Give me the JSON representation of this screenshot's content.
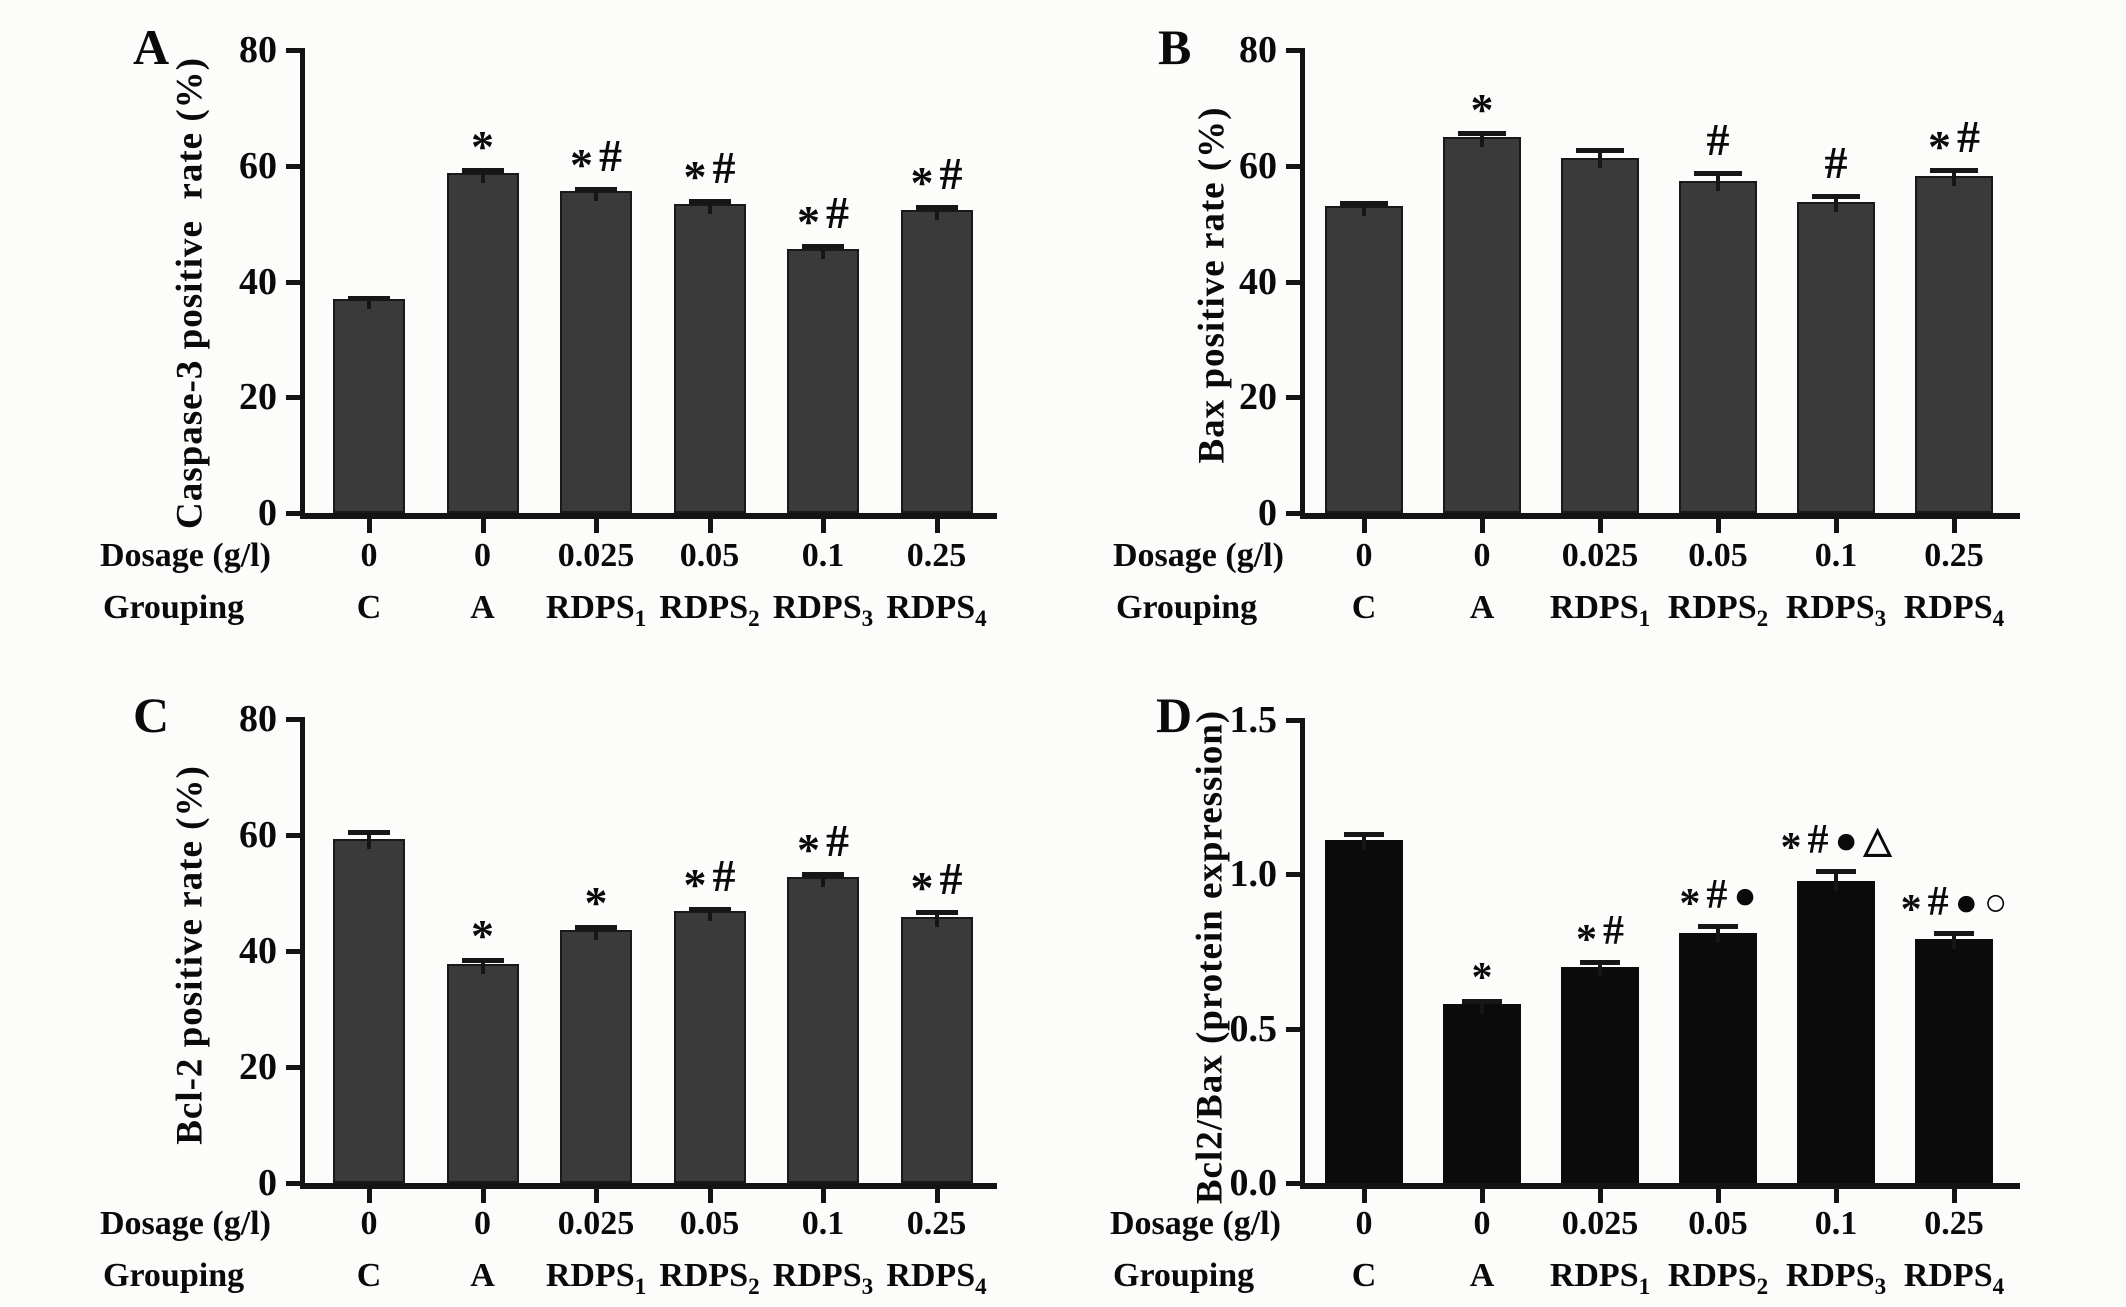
{
  "chart_data": [
    {
      "type": "bar",
      "panel_label": "A",
      "ylabel": "Caspase-3 positive  rate (%)",
      "ylim": [
        0,
        80
      ],
      "yticks": [
        0,
        20,
        40,
        60,
        80
      ],
      "ytick_labels": [
        "0",
        "20",
        "40",
        "60",
        "80"
      ],
      "bar_color": "#3a3a3a",
      "error_color": "#161616",
      "x_rows": {
        "dosage_label": "Dosage (g/l)",
        "grouping_label": "Grouping"
      },
      "dosages": [
        "0",
        "0",
        "0.025",
        "0.05",
        "0.1",
        "0.25"
      ],
      "groups": [
        {
          "base": "C",
          "sub": ""
        },
        {
          "base": "A",
          "sub": ""
        },
        {
          "base": "RDPS",
          "sub": "1"
        },
        {
          "base": "RDPS",
          "sub": "2"
        },
        {
          "base": "RDPS",
          "sub": "3"
        },
        {
          "base": "RDPS",
          "sub": "4"
        }
      ],
      "values": [
        36.9,
        58.8,
        55.7,
        53.4,
        45.6,
        52.3
      ],
      "errors": [
        0.3,
        0.4,
        0.3,
        0.5,
        0.5,
        0.6
      ],
      "annotations": [
        "",
        "*",
        "*#",
        "*#",
        "*#",
        "*#"
      ],
      "legend": "none",
      "grid": "off"
    },
    {
      "type": "bar",
      "panel_label": "B",
      "ylabel": "Bax positive rate (%)",
      "ylim": [
        0,
        80
      ],
      "yticks": [
        0,
        20,
        40,
        60,
        80
      ],
      "ytick_labels": [
        "0",
        "20",
        "40",
        "60",
        "80"
      ],
      "bar_color": "#3a3a3a",
      "error_color": "#161616",
      "x_rows": {
        "dosage_label": "Dosage (g/l)",
        "grouping_label": "Grouping"
      },
      "dosages": [
        "0",
        "0",
        "0.025",
        "0.05",
        "0.1",
        "0.25"
      ],
      "groups": [
        {
          "base": "C",
          "sub": ""
        },
        {
          "base": "A",
          "sub": ""
        },
        {
          "base": "RDPS",
          "sub": "1"
        },
        {
          "base": "RDPS",
          "sub": "2"
        },
        {
          "base": "RDPS",
          "sub": "3"
        },
        {
          "base": "RDPS",
          "sub": "4"
        }
      ],
      "values": [
        53.0,
        65.0,
        61.4,
        57.3,
        53.8,
        58.3
      ],
      "errors": [
        0.6,
        0.6,
        1.3,
        1.4,
        1.0,
        0.9
      ],
      "annotations": [
        "",
        "*",
        "",
        "#",
        "#",
        "*#"
      ],
      "legend": "none",
      "grid": "off"
    },
    {
      "type": "bar",
      "panel_label": "C",
      "ylabel": "Bcl-2 positive rate (%)",
      "ylim": [
        0,
        80
      ],
      "yticks": [
        0,
        20,
        40,
        60,
        80
      ],
      "ytick_labels": [
        "0",
        "20",
        "40",
        "60",
        "80"
      ],
      "bar_color": "#3a3a3a",
      "error_color": "#161616",
      "x_rows": {
        "dosage_label": "Dosage (g/l)",
        "grouping_label": "Grouping"
      },
      "dosages": [
        "0",
        "0",
        "0.025",
        "0.05",
        "0.1",
        "0.25"
      ],
      "groups": [
        {
          "base": "C",
          "sub": ""
        },
        {
          "base": "A",
          "sub": ""
        },
        {
          "base": "RDPS",
          "sub": "1"
        },
        {
          "base": "RDPS",
          "sub": "2"
        },
        {
          "base": "RDPS",
          "sub": "3"
        },
        {
          "base": "RDPS",
          "sub": "4"
        }
      ],
      "values": [
        59.3,
        37.8,
        43.6,
        46.9,
        52.8,
        45.9
      ],
      "errors": [
        1.3,
        0.6,
        0.6,
        0.4,
        0.5,
        0.9
      ],
      "annotations": [
        "",
        "*",
        "*",
        "*#",
        "*#",
        "*#"
      ],
      "legend": "none",
      "grid": "off"
    },
    {
      "type": "bar",
      "panel_label": "D",
      "ylabel": "Bcl2/Bax (protein expression)",
      "ylim": [
        0,
        1.5
      ],
      "yticks": [
        0.0,
        0.5,
        1.0,
        1.5
      ],
      "ytick_labels": [
        "0.0",
        "0.5",
        "1.0",
        "1.5"
      ],
      "bar_color": "#0b0b0b",
      "error_color": "#161616",
      "x_rows": {
        "dosage_label": "Dosage (g/l)",
        "grouping_label": "Grouping"
      },
      "dosages": [
        "0",
        "0",
        "0.025",
        "0.05",
        "0.1",
        "0.25"
      ],
      "groups": [
        {
          "base": "C",
          "sub": ""
        },
        {
          "base": "A",
          "sub": ""
        },
        {
          "base": "RDPS",
          "sub": "1"
        },
        {
          "base": "RDPS",
          "sub": "2"
        },
        {
          "base": "RDPS",
          "sub": "3"
        },
        {
          "base": "RDPS",
          "sub": "4"
        }
      ],
      "values": [
        1.11,
        0.58,
        0.7,
        0.81,
        0.98,
        0.79
      ],
      "errors": [
        0.02,
        0.01,
        0.015,
        0.022,
        0.032,
        0.02
      ],
      "annotations": [
        "",
        "*",
        "*#",
        "*#●",
        "*#●△",
        "*#●○"
      ],
      "legend": "none",
      "grid": "off"
    }
  ]
}
